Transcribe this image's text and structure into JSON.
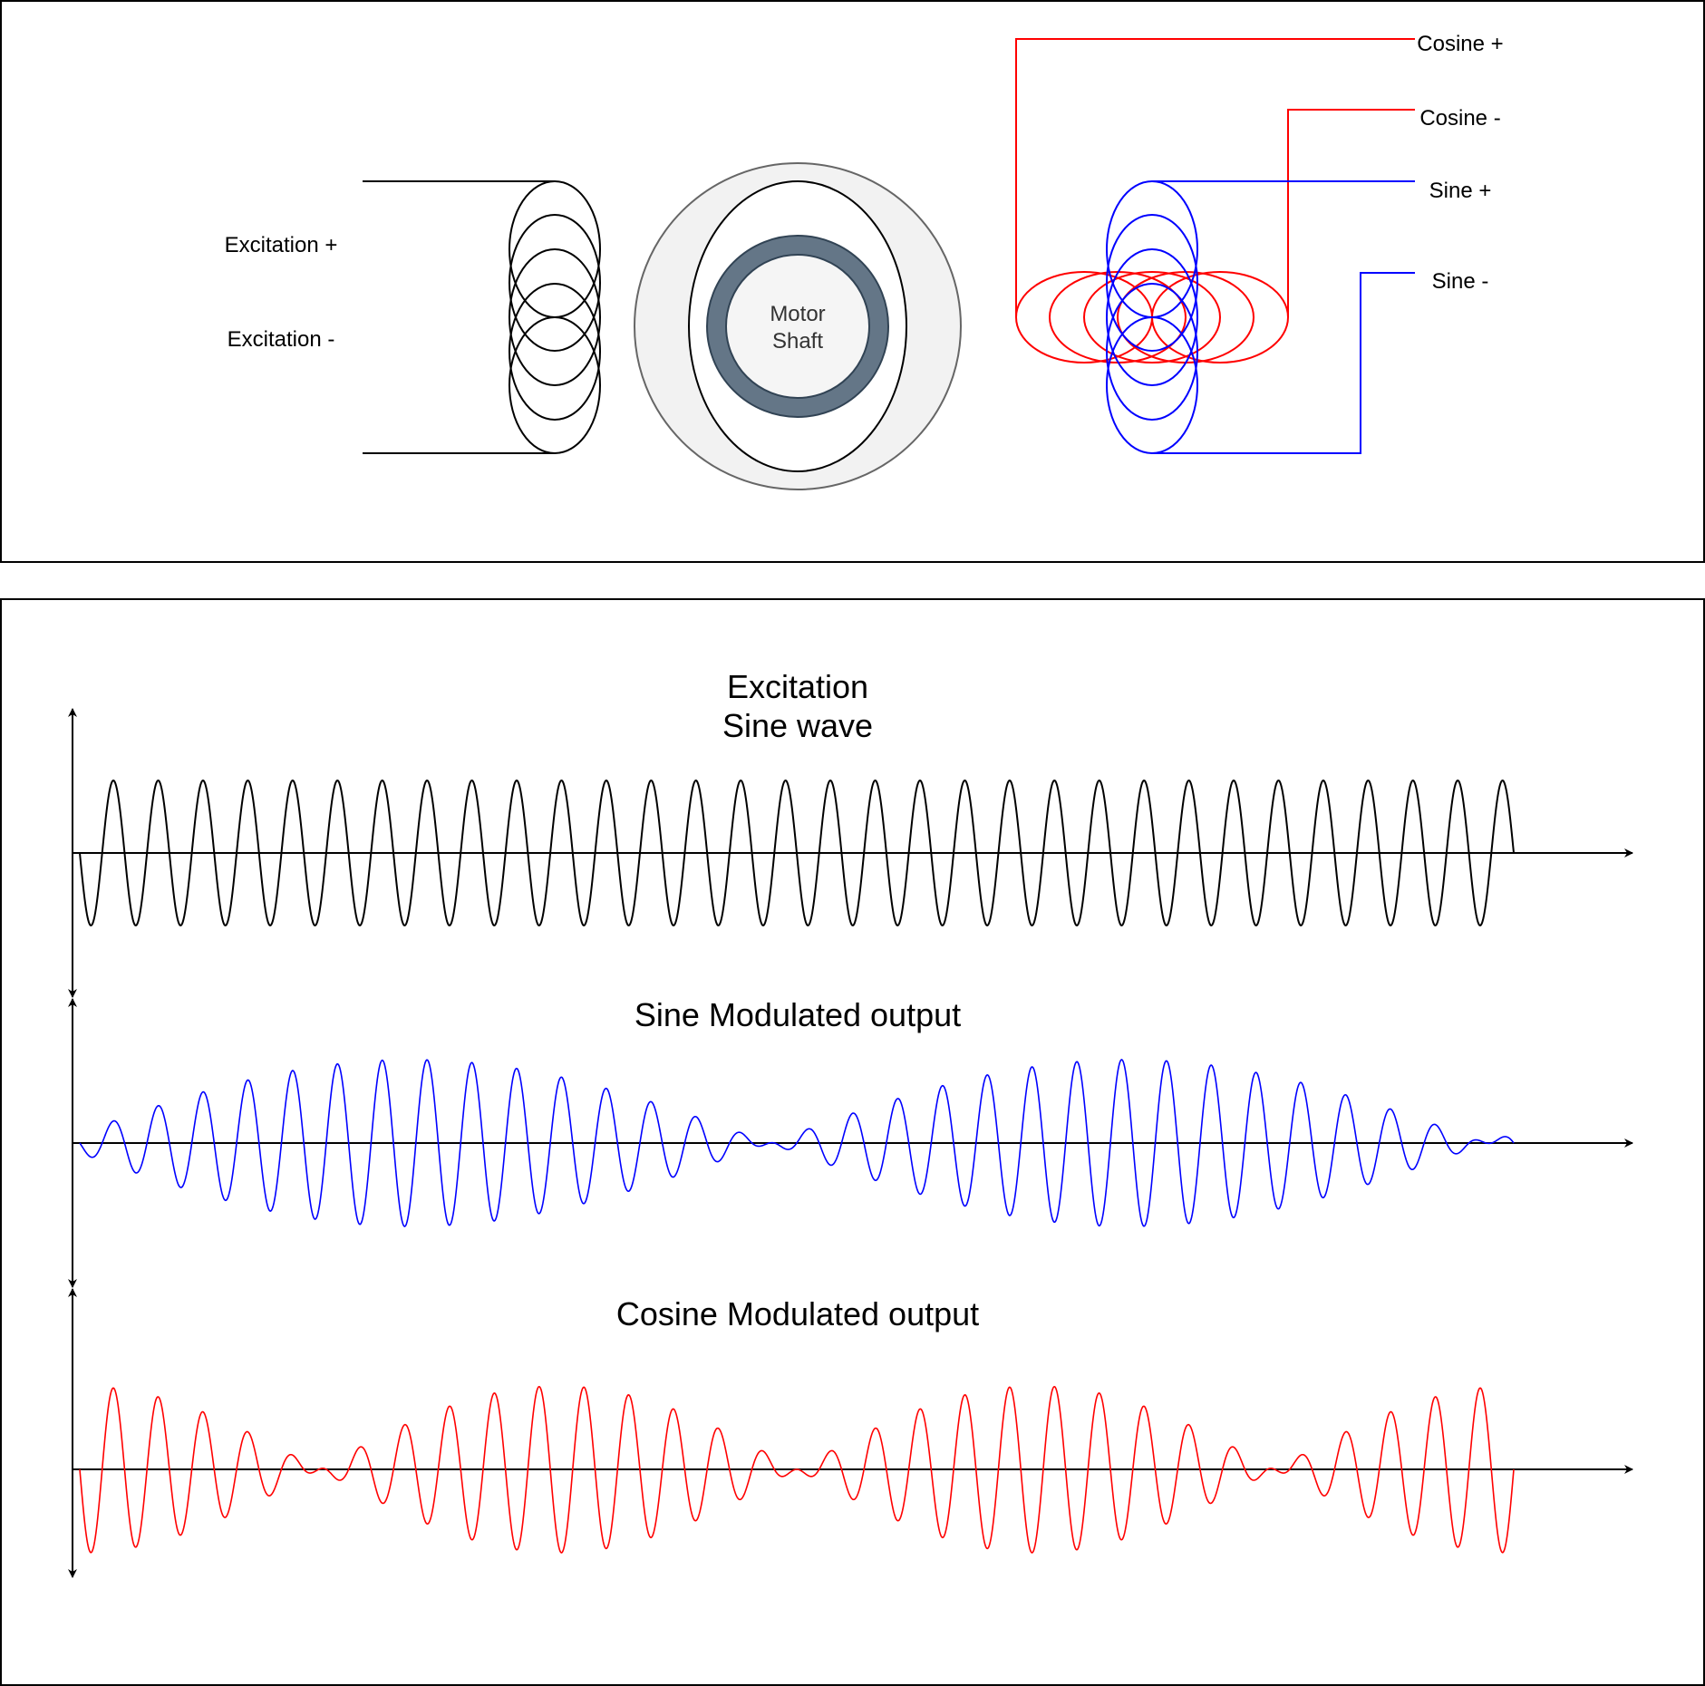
{
  "colors": {
    "excitation": "#000000",
    "sine": "#0000ff",
    "cosine": "#ff0000",
    "shaft_ring": "#647687",
    "shaft_fill": "#f5f5f5",
    "rotor_fill": "#f2f2f2"
  },
  "resolver": {
    "excitation_plus": "Excitation +",
    "excitation_minus": "Excitation -",
    "shaft_line1": "Motor",
    "shaft_line2": "Shaft",
    "cosine_plus": "Cosine +",
    "cosine_minus": "Cosine -",
    "sine_plus": "Sine +",
    "sine_minus": "Sine -"
  },
  "waveforms": {
    "excitation_title_line1": "Excitation",
    "excitation_title_line2": "Sine wave",
    "sine_title": "Sine Modulated output",
    "cosine_title": "Cosine Modulated output",
    "carrier_cycles": 32,
    "sine_envelope_half_cycles": 2,
    "cosine_envelope_half_cycles": 3
  }
}
